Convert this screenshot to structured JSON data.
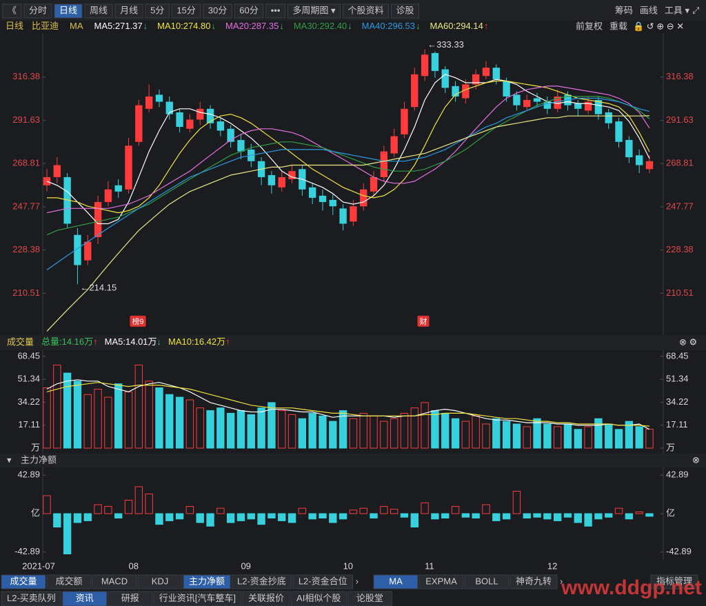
{
  "toolbar": {
    "left": [
      "《",
      "分时",
      "日线",
      "周线",
      "月线",
      "5分",
      "15分",
      "30分",
      "60分",
      "•••",
      "多周期图 ▾",
      "个股资料",
      "诊股"
    ],
    "right": [
      "筹码",
      "画线",
      "工具 ▾"
    ]
  },
  "legend": {
    "period": "日线",
    "stock": "比亚迪",
    "indicator": "MA",
    "options": [
      "前复权",
      "重载"
    ]
  },
  "badges": [
    "榜9",
    "财"
  ],
  "chart_data": [
    {
      "type": "candlestick",
      "log": true,
      "ylim": [
        195.6,
        341.9
      ],
      "yticks": [
        210.51,
        228.38,
        247.77,
        268.81,
        291.63,
        316.38
      ],
      "categories": [
        "2021-07",
        null,
        null,
        null,
        null,
        null,
        null,
        null,
        "08",
        null,
        null,
        null,
        null,
        null,
        null,
        null,
        null,
        null,
        null,
        "09",
        null,
        null,
        null,
        null,
        null,
        null,
        null,
        null,
        null,
        "10",
        null,
        null,
        null,
        null,
        null,
        null,
        null,
        "11",
        null,
        null,
        null,
        null,
        null,
        null,
        null,
        null,
        null,
        null,
        null,
        "12",
        null,
        null,
        null,
        null,
        null,
        null,
        null,
        null,
        null,
        null
      ],
      "up_color": "#ff3b3b",
      "down_color": "#36d1dc",
      "annotations": {
        "max": "←333.33",
        "min": "←214.15"
      },
      "open": [
        258,
        262,
        262,
        235,
        224,
        234,
        250,
        258,
        256,
        280,
        298,
        306,
        302,
        296,
        287,
        292,
        298,
        291,
        287,
        281,
        276,
        270,
        263,
        257,
        261,
        266,
        257,
        253,
        251,
        247,
        241,
        248,
        255,
        262,
        274,
        284,
        299,
        317,
        331,
        321,
        311,
        304,
        312,
        317,
        322,
        314,
        306,
        299,
        304,
        302,
        298,
        306,
        301,
        297,
        303,
        296,
        291,
        281,
        273,
        266
      ],
      "high": [
        266,
        272,
        264,
        238,
        235,
        253,
        260,
        261,
        282,
        303,
        312,
        309,
        305,
        298,
        295,
        302,
        300,
        293,
        289,
        284,
        279,
        272,
        265,
        265,
        268,
        268,
        259,
        256,
        254,
        249,
        251,
        259,
        265,
        278,
        287,
        302,
        322,
        333.33,
        332,
        323,
        314,
        315,
        321,
        326,
        324,
        316,
        308,
        306,
        307,
        305,
        309,
        308,
        303,
        305,
        305,
        298,
        293,
        283,
        276,
        273
      ],
      "low": [
        255,
        259,
        238,
        214.15,
        222,
        231,
        248,
        252,
        254,
        278,
        296,
        299,
        292,
        285,
        285,
        289,
        287,
        283,
        277,
        271,
        267,
        258,
        254,
        255,
        259,
        253,
        249,
        246,
        244,
        237,
        239,
        246,
        253,
        260,
        272,
        282,
        297,
        314,
        316,
        307,
        302,
        301,
        309,
        315,
        312,
        302,
        297,
        297,
        299,
        295,
        296,
        297,
        294,
        295,
        292,
        287,
        277,
        269,
        264,
        264
      ],
      "close": [
        262,
        268,
        240,
        222,
        232,
        250,
        256,
        255,
        278,
        300,
        305,
        302,
        295,
        288,
        292,
        298,
        290,
        286,
        280,
        275,
        270,
        262,
        258,
        262,
        265,
        256,
        252,
        250,
        248,
        240,
        248,
        256,
        262,
        275,
        283,
        298,
        318,
        330,
        320,
        310,
        305,
        312,
        318,
        322,
        315,
        305,
        300,
        303,
        302,
        298,
        305,
        300,
        298,
        302,
        295,
        290,
        280,
        272,
        268,
        270
      ],
      "series": [
        {
          "name": "MA5:271.37",
          "arrow": "↓",
          "color": "#ffffff",
          "values": [
            260,
            258,
            255,
            250,
            245,
            240,
            240,
            242,
            250,
            262,
            275,
            286,
            296,
            298,
            298,
            296,
            295,
            293,
            290,
            286,
            282,
            277,
            271,
            265,
            262,
            261,
            259,
            257,
            254,
            250,
            249,
            250,
            253,
            258,
            266,
            276,
            288,
            303,
            313,
            318,
            316,
            313,
            313,
            313,
            315,
            314,
            312,
            308,
            305,
            302,
            301,
            302,
            301,
            301,
            300,
            299,
            297,
            291,
            282,
            271.37
          ]
        },
        {
          "name": "MA10:274.80",
          "arrow": "↓",
          "color": "#f2e33c",
          "values": [
            252,
            252,
            251,
            250,
            248,
            247,
            246,
            245,
            246,
            248,
            252,
            258,
            266,
            274,
            281,
            287,
            291,
            294,
            295,
            293,
            290,
            286,
            282,
            278,
            274,
            270,
            266,
            263,
            260,
            257,
            255,
            253,
            252,
            253,
            256,
            261,
            268,
            278,
            289,
            299,
            306,
            309,
            311,
            313,
            314,
            314,
            313,
            312,
            311,
            310,
            308,
            306,
            304,
            303,
            302,
            301,
            299,
            294,
            285,
            274.8
          ]
        },
        {
          "name": "MA20:287.35",
          "arrow": "↓",
          "color": "#e36fe0",
          "values": [
            245,
            246,
            247,
            247,
            247,
            247,
            247,
            248,
            249,
            251,
            253,
            256,
            259,
            262,
            265,
            269,
            273,
            277,
            281,
            284,
            286,
            287,
            287,
            286,
            285,
            283,
            280,
            277,
            274,
            271,
            268,
            265,
            262,
            260,
            259,
            259,
            260,
            263,
            266,
            270,
            275,
            281,
            287,
            293,
            299,
            304,
            307,
            309,
            310,
            311,
            311,
            310,
            309,
            308,
            307,
            306,
            304,
            301,
            296,
            287.35
          ]
        },
        {
          "name": "MA30:292.40",
          "arrow": "↓",
          "color": "#2f9e44",
          "values": [
            235,
            237,
            238,
            239,
            240,
            241,
            242,
            243,
            245,
            247,
            249,
            252,
            255,
            258,
            261,
            264,
            267,
            270,
            273,
            275,
            277,
            278,
            279,
            280,
            280,
            279,
            278,
            277,
            275,
            273,
            271,
            269,
            267,
            266,
            265,
            265,
            265,
            266,
            268,
            270,
            273,
            276,
            280,
            284,
            288,
            291,
            294,
            297,
            300,
            302,
            304,
            305,
            305,
            305,
            305,
            304,
            302,
            300,
            297,
            292.4
          ]
        },
        {
          "name": "MA40:296.53",
          "arrow": "↓",
          "color": "#2a9be3",
          "values": [
            220,
            223,
            226,
            229,
            232,
            235,
            238,
            241,
            244,
            247,
            250,
            253,
            256,
            259,
            262,
            264,
            266,
            268,
            270,
            272,
            273,
            274,
            275,
            276,
            276,
            276,
            276,
            276,
            275,
            274,
            273,
            272,
            271,
            270,
            270,
            270,
            271,
            272,
            274,
            276,
            279,
            282,
            285,
            288,
            290,
            293,
            295,
            297,
            299,
            301,
            302,
            303,
            304,
            304,
            304,
            303,
            302,
            300,
            298,
            296.53
          ]
        },
        {
          "name": "MA60:294.14",
          "arrow": "↑",
          "color": "#eaea80",
          "values": [
            196,
            200,
            204,
            208,
            212,
            217,
            222,
            227,
            232,
            237,
            241,
            245,
            249,
            252,
            255,
            257,
            259,
            261,
            263,
            264,
            265,
            266,
            267,
            267,
            268,
            268,
            268,
            268,
            268,
            268,
            268,
            268,
            269,
            270,
            271,
            272,
            273,
            274,
            276,
            278,
            280,
            282,
            284,
            286,
            288,
            289,
            290,
            291,
            292,
            293,
            293,
            294,
            294,
            294,
            294,
            294,
            294,
            294,
            294,
            294.14
          ]
        }
      ]
    },
    {
      "type": "bar",
      "header": "成交量",
      "total": {
        "label": "总量:14.16万",
        "arrow": "↑",
        "color": "#36c05a"
      },
      "ylim": [
        0,
        72
      ],
      "yticks": [
        {
          "value": 0,
          "label": "万"
        },
        17.11,
        34.22,
        51.34,
        68.45
      ],
      "values": [
        45,
        62,
        56,
        50,
        40,
        44,
        38,
        48,
        42,
        62,
        50,
        45,
        40,
        38,
        36,
        30,
        28,
        30,
        26,
        28,
        25,
        30,
        34,
        28,
        25,
        22,
        26,
        24,
        20,
        28,
        22,
        26,
        24,
        20,
        22,
        26,
        30,
        34,
        28,
        26,
        22,
        20,
        24,
        18,
        22,
        20,
        18,
        16,
        22,
        18,
        16,
        18,
        14,
        16,
        22,
        18,
        14,
        20,
        16,
        14.16
      ],
      "series": [
        {
          "name": "MA5:14.01万",
          "arrow": "↓",
          "color": "#ffffff",
          "values": [
            44,
            48,
            50,
            51,
            50,
            50,
            46,
            44,
            42,
            46,
            48,
            49,
            47,
            45,
            42,
            38,
            34,
            32,
            30,
            28,
            27,
            27,
            29,
            29,
            28,
            27,
            27,
            25,
            23,
            24,
            24,
            24,
            24,
            24,
            23,
            24,
            24,
            26,
            28,
            29,
            28,
            26,
            24,
            22,
            21,
            21,
            20,
            19,
            19,
            19,
            18,
            18,
            17,
            17,
            17,
            18,
            17,
            17,
            18,
            14.01
          ]
        },
        {
          "name": "MA10:16.42万",
          "arrow": "↑",
          "color": "#f2e33c",
          "values": [
            42,
            44,
            46,
            47,
            48,
            49,
            48,
            47,
            46,
            47,
            47,
            47,
            46,
            45,
            44,
            42,
            40,
            38,
            36,
            34,
            32,
            31,
            30,
            30,
            30,
            29,
            28,
            27,
            26,
            26,
            25,
            24,
            24,
            24,
            24,
            24,
            24,
            25,
            25,
            26,
            26,
            26,
            25,
            24,
            23,
            22,
            22,
            21,
            20,
            20,
            19,
            19,
            18,
            18,
            18,
            18,
            17,
            17,
            17,
            16.42
          ]
        }
      ]
    },
    {
      "type": "bar",
      "header": "主力净额",
      "ylim": [
        -50,
        50
      ],
      "yticks": [
        -42.89,
        {
          "value": 0,
          "label": "亿"
        },
        42.89
      ],
      "values": [
        20,
        -15,
        -45,
        -10,
        -8,
        10,
        8,
        -5,
        15,
        30,
        22,
        -12,
        -8,
        -6,
        8,
        -10,
        -14,
        6,
        -10,
        -8,
        -6,
        -12,
        -5,
        -8,
        -10,
        6,
        -6,
        -5,
        -10,
        -6,
        4,
        6,
        -5,
        8,
        5,
        -4,
        -15,
        12,
        -6,
        -5,
        8,
        -4,
        -5,
        10,
        -8,
        -6,
        25,
        -5,
        -4,
        -6,
        -8,
        -4,
        -10,
        -14,
        -6,
        -4,
        6,
        -6,
        2,
        -3
      ]
    }
  ],
  "tabs": {
    "indicators": [
      "成交量",
      "成交额",
      "MACD",
      "KDJ",
      "主力净额",
      "L2-资金抄底",
      "L2-资金合位"
    ],
    "overlays": [
      "MA",
      "EXPMA",
      "BOLL",
      "神奇九转"
    ],
    "manage": "指标管理",
    "bottom": [
      "L2-买卖队列",
      "资讯",
      "研报",
      "行业资讯[汽车整车]",
      "关联报价",
      "AI相似个股",
      "论股堂"
    ],
    "watermark": "www.ddgp.net"
  }
}
